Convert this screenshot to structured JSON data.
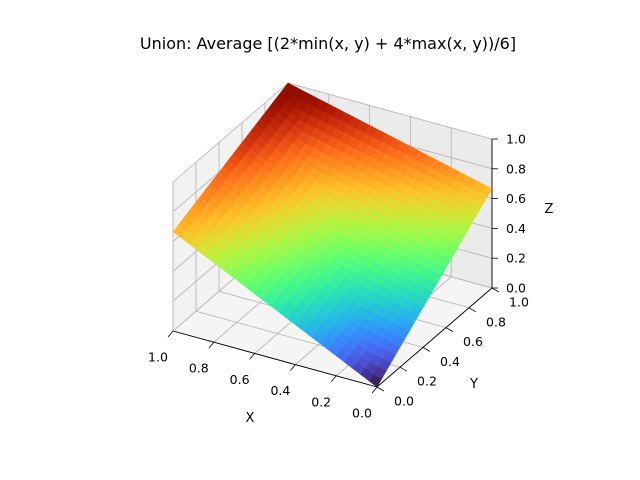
{
  "chart_data": {
    "type": "surface",
    "title": "Union: Average [(2*min(x, y) + 4*max(x, y))/6]",
    "formula": "z = (2*min(x, y) + 4*max(x, y)) / 6",
    "xlabel": "X",
    "ylabel": "Y",
    "zlabel": "Z",
    "xlim": [
      0,
      1
    ],
    "ylim": [
      0,
      1
    ],
    "zlim": [
      0,
      1
    ],
    "grid": true,
    "colormap": "turbo",
    "resolution": 25,
    "x_ticks": [
      {
        "value": 0.0,
        "label": "0.0"
      },
      {
        "value": 0.2,
        "label": "0.2"
      },
      {
        "value": 0.4,
        "label": "0.4"
      },
      {
        "value": 0.6,
        "label": "0.6"
      },
      {
        "value": 0.8,
        "label": "0.8"
      },
      {
        "value": 1.0,
        "label": "1.0"
      }
    ],
    "y_ticks": [
      {
        "value": 0.0,
        "label": "0.0"
      },
      {
        "value": 0.2,
        "label": "0.2"
      },
      {
        "value": 0.4,
        "label": "0.4"
      },
      {
        "value": 0.6,
        "label": "0.6"
      },
      {
        "value": 0.8,
        "label": "0.8"
      },
      {
        "value": 1.0,
        "label": "1.0"
      }
    ],
    "z_ticks": [
      {
        "value": 0.0,
        "label": "0.0"
      },
      {
        "value": 0.2,
        "label": "0.2"
      },
      {
        "value": 0.4,
        "label": "0.4"
      },
      {
        "value": 0.6,
        "label": "0.6"
      },
      {
        "value": 0.8,
        "label": "0.8"
      },
      {
        "value": 1.0,
        "label": "1.0"
      }
    ],
    "corner_values": [
      {
        "x": 0,
        "y": 0,
        "z": 0.0
      },
      {
        "x": 1,
        "y": 0,
        "z": 0.667
      },
      {
        "x": 0,
        "y": 1,
        "z": 0.667
      },
      {
        "x": 1,
        "y": 1,
        "z": 1.0
      }
    ]
  }
}
